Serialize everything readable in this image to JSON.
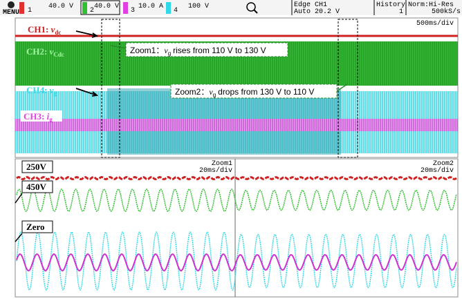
{
  "menu": "MENU",
  "channels": [
    {
      "number": "1",
      "scale": "40.0 V"
    },
    {
      "number": "2",
      "scale": "40.0 V"
    },
    {
      "number": "3",
      "scale": "10.0 A"
    },
    {
      "number": "4",
      "scale": "100 V"
    }
  ],
  "trigger": {
    "mode": "Edge CH1",
    "level": "Auto 20.2 V"
  },
  "history": {
    "label": "History",
    "count": "1"
  },
  "acquisition": {
    "mode": "Norm:Hi-Res",
    "rate": "500kS/s"
  },
  "main_timebase": "500ms/div",
  "trace_labels": [
    {
      "channel": "CH1:",
      "symbol": "v",
      "subscript": "dc"
    },
    {
      "channel": "CH2:",
      "symbol": "v",
      "subscript": "Cdc"
    },
    {
      "channel": "CH4:",
      "symbol": "v",
      "subscript": "g"
    },
    {
      "channel": "CH3:",
      "symbol": "i",
      "subscript": "g"
    }
  ],
  "annotations": [
    {
      "zoom": "Zoom1：",
      "symbol": "v",
      "subscript": "g",
      "text": "rises from 110 V to 130 V"
    },
    {
      "zoom": "Zoom2：",
      "symbol": "v",
      "subscript": "g",
      "text": "drops from 130 V to 110 V"
    }
  ],
  "zoom_windows": [
    {
      "name": "Zoom1",
      "timebase": "20ms/div"
    },
    {
      "name": "Zoom2",
      "timebase": "20ms/div"
    }
  ],
  "level_labels": [
    "250V",
    "450V",
    "Zero"
  ]
}
